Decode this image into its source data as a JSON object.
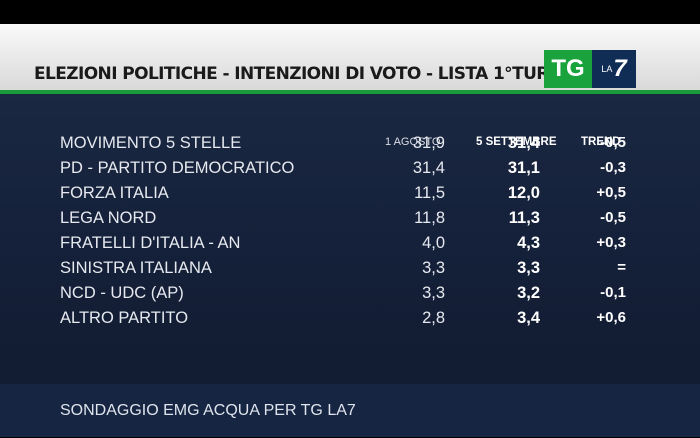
{
  "header": {
    "title": "ELEZIONI POLITICHE - INTENZIONI DI VOTO - LISTA 1°TURNO",
    "logo_tg": "TG",
    "logo_la": "LA",
    "logo_7": "7"
  },
  "columns": {
    "party": "",
    "col1": "1 AGOSTO",
    "col2": "5 SETTEMBRE",
    "trend": "TREND"
  },
  "chart_data": {
    "type": "table",
    "title": "ELEZIONI POLITICHE - INTENZIONI DI VOTO - LISTA 1°TURNO",
    "columns": [
      "1 AGOSTO",
      "5 SETTEMBRE",
      "TREND"
    ],
    "rows": [
      {
        "party": "MOVIMENTO 5 STELLE",
        "agosto": "31,9",
        "settembre": "31,4",
        "trend": "-0,5"
      },
      {
        "party": "PD - PARTITO DEMOCRATICO",
        "agosto": "31,4",
        "settembre": "31,1",
        "trend": "-0,3"
      },
      {
        "party": "FORZA ITALIA",
        "agosto": "11,5",
        "settembre": "12,0",
        "trend": "+0,5"
      },
      {
        "party": "LEGA NORD",
        "agosto": "11,8",
        "settembre": "11,3",
        "trend": "-0,5"
      },
      {
        "party": "FRATELLI D'ITALIA - AN",
        "agosto": "4,0",
        "settembre": "4,3",
        "trend": "+0,3"
      },
      {
        "party": "SINISTRA ITALIANA",
        "agosto": "3,3",
        "settembre": "3,3",
        "trend": "="
      },
      {
        "party": "NCD - UDC (AP)",
        "agosto": "3,3",
        "settembre": "3,2",
        "trend": "-0,1"
      },
      {
        "party": "ALTRO PARTITO",
        "agosto": "2,8",
        "settembre": "3,4",
        "trend": "+0,6"
      }
    ]
  },
  "footer": {
    "source": "SONDAGGIO EMG ACQUA PER TG LA7"
  },
  "colors": {
    "panel": "#15213a",
    "accent_green": "#1a9a3a",
    "logo_blue": "#0f2d55"
  }
}
